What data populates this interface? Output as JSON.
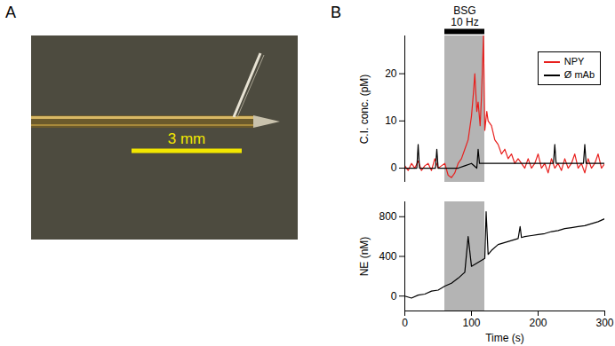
{
  "panel_labels": [
    "A",
    "B"
  ],
  "photo": {
    "scale_bar_label": "3 mm"
  },
  "chart_data": [
    {
      "type": "line",
      "y_label": "C.I. conc. (pM)",
      "xlim": [
        0,
        300
      ],
      "ylim": [
        -3,
        28
      ],
      "yticks": [
        0,
        10,
        20
      ],
      "tick_labels": "y",
      "legend": "top-right",
      "stimulus": {
        "label": [
          "BSG",
          "10 Hz"
        ],
        "start": 60,
        "end": 120
      },
      "series": [
        {
          "name": "NPY",
          "color": "#e8201e",
          "x": [
            0,
            5,
            10,
            15,
            20,
            25,
            30,
            35,
            40,
            45,
            50,
            55,
            60,
            65,
            70,
            75,
            80,
            85,
            90,
            95,
            100,
            103,
            105,
            108,
            110,
            113,
            115,
            118,
            120,
            123,
            125,
            130,
            135,
            140,
            145,
            150,
            155,
            160,
            165,
            170,
            175,
            180,
            185,
            190,
            195,
            200,
            205,
            210,
            215,
            220,
            225,
            230,
            235,
            240,
            245,
            250,
            255,
            260,
            265,
            270,
            275,
            280,
            285,
            290,
            295,
            300
          ],
          "values": [
            0.5,
            -0.5,
            1,
            0,
            1.5,
            -0.5,
            0.5,
            1,
            -0.5,
            2,
            0,
            0.5,
            1,
            -1.5,
            -2,
            -1,
            1,
            2,
            4,
            6,
            11,
            16,
            20,
            12,
            14,
            9,
            15,
            28,
            8,
            12,
            10,
            9,
            6,
            5,
            3,
            4,
            2,
            3,
            1,
            2,
            1,
            0,
            2,
            0,
            1,
            3,
            0,
            1,
            -1,
            2,
            0,
            1,
            -0.5,
            2,
            0,
            1,
            3,
            0,
            1,
            -1,
            2,
            0,
            1,
            3,
            0,
            1
          ]
        },
        {
          "name": "Ø mAb",
          "color": "#000000",
          "x": [
            0,
            10,
            18,
            20,
            22,
            30,
            40,
            46,
            48,
            50,
            60,
            70,
            80,
            90,
            100,
            108,
            110,
            112,
            120,
            130,
            140,
            150,
            160,
            170,
            180,
            190,
            200,
            210,
            220,
            223,
            225,
            227,
            240,
            250,
            260,
            268,
            270,
            272,
            280,
            290,
            300
          ],
          "values": [
            0,
            0,
            0,
            5,
            0,
            0,
            0,
            0,
            4,
            0,
            0,
            0,
            0,
            0.5,
            1,
            0,
            4,
            1,
            1,
            1,
            1,
            1,
            1,
            1,
            1,
            1,
            1,
            1,
            1,
            1,
            5,
            1,
            1,
            1,
            1,
            1,
            5,
            1,
            1,
            1,
            1
          ]
        }
      ]
    },
    {
      "type": "line",
      "x_label": "Time (s)",
      "y_label": "NE (nM)",
      "xlim": [
        0,
        300
      ],
      "xticks": [
        0,
        100,
        200,
        300
      ],
      "ylim": [
        -150,
        950
      ],
      "yticks": [
        0,
        400,
        800
      ],
      "stimulus": {
        "start": 60,
        "end": 120
      },
      "series": [
        {
          "name": "NE",
          "color": "#000000",
          "x": [
            0,
            10,
            20,
            30,
            40,
            50,
            60,
            70,
            80,
            90,
            95,
            100,
            110,
            120,
            122,
            125,
            130,
            140,
            150,
            160,
            170,
            173,
            175,
            180,
            190,
            200,
            210,
            220,
            230,
            240,
            250,
            260,
            270,
            280,
            290,
            300
          ],
          "values": [
            0,
            -20,
            10,
            20,
            50,
            60,
            100,
            130,
            180,
            240,
            600,
            300,
            340,
            380,
            850,
            420,
            460,
            520,
            540,
            560,
            580,
            700,
            590,
            600,
            610,
            620,
            630,
            650,
            660,
            680,
            690,
            700,
            710,
            730,
            750,
            780
          ]
        }
      ]
    }
  ]
}
